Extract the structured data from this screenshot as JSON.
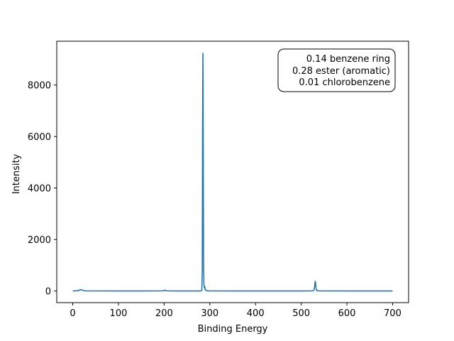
{
  "chart_data": {
    "type": "line",
    "title": "",
    "xlabel": "Binding Energy",
    "ylabel": "Intensity",
    "xlim": [
      -35,
      735
    ],
    "ylim": [
      -450,
      9700
    ],
    "x_ticks": [
      0,
      100,
      200,
      300,
      400,
      500,
      600,
      700
    ],
    "y_ticks": [
      0,
      2000,
      4000,
      6000,
      8000
    ],
    "grid": false,
    "series": [
      {
        "color": "#1f77b4",
        "points": [
          [
            0,
            5
          ],
          [
            10,
            10
          ],
          [
            14,
            30
          ],
          [
            17,
            60
          ],
          [
            20,
            45
          ],
          [
            24,
            15
          ],
          [
            30,
            5
          ],
          [
            60,
            5
          ],
          [
            100,
            3
          ],
          [
            150,
            3
          ],
          [
            195,
            5
          ],
          [
            199,
            15
          ],
          [
            201,
            35
          ],
          [
            204,
            15
          ],
          [
            210,
            5
          ],
          [
            250,
            3
          ],
          [
            278,
            3
          ],
          [
            281,
            10
          ],
          [
            282.5,
            40
          ],
          [
            283.5,
            800
          ],
          [
            284.2,
            6500
          ],
          [
            284.8,
            9230
          ],
          [
            285.4,
            6500
          ],
          [
            286.2,
            1500
          ],
          [
            287,
            300
          ],
          [
            288,
            120
          ],
          [
            289,
            160
          ],
          [
            290,
            60
          ],
          [
            292,
            15
          ],
          [
            300,
            5
          ],
          [
            350,
            3
          ],
          [
            400,
            3
          ],
          [
            450,
            3
          ],
          [
            500,
            3
          ],
          [
            525,
            5
          ],
          [
            528,
            40
          ],
          [
            529.5,
            200
          ],
          [
            530.5,
            380
          ],
          [
            531.5,
            300
          ],
          [
            532.5,
            100
          ],
          [
            534,
            20
          ],
          [
            538,
            5
          ],
          [
            600,
            3
          ],
          [
            650,
            3
          ],
          [
            700,
            3
          ]
        ]
      }
    ],
    "annotation": {
      "lines": [
        "0.14  benzene ring",
        "0.28  ester (aromatic)",
        "0.01  chlorobenzene"
      ],
      "placement": "top-right"
    }
  }
}
